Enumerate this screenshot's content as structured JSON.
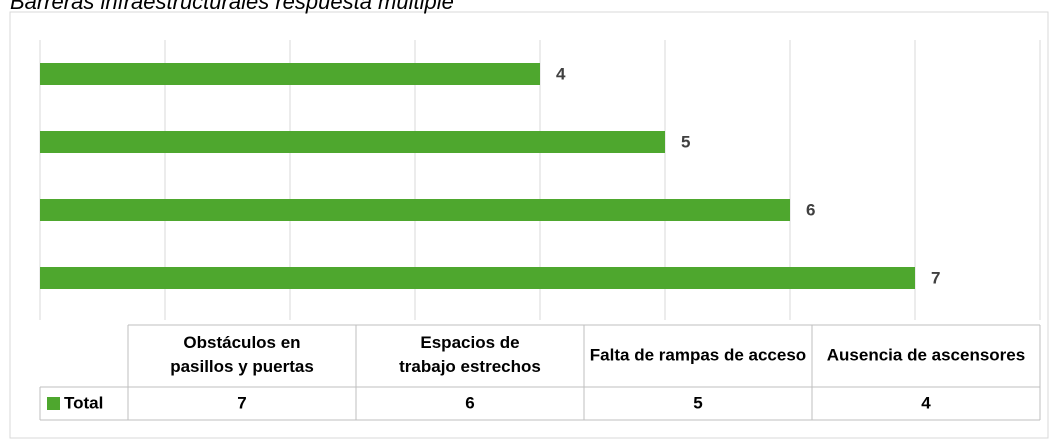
{
  "chart_data": {
    "type": "bar",
    "orientation": "horizontal",
    "title": "Barreras infraestructurales respuesta múltiple",
    "categories": [
      "Obstáculos en pasillos y puertas",
      "Espacios de trabajo estrechos",
      "Falta de rampas de acceso",
      "Ausencia de ascensores"
    ],
    "series": [
      {
        "name": "Total",
        "color": "#4ea72e",
        "values": [
          7,
          6,
          5,
          4
        ]
      }
    ],
    "xlim": [
      0,
      8
    ],
    "xticks": [
      0,
      1,
      2,
      3,
      4,
      5,
      6,
      7,
      8
    ],
    "grid": true,
    "data_table": true
  }
}
